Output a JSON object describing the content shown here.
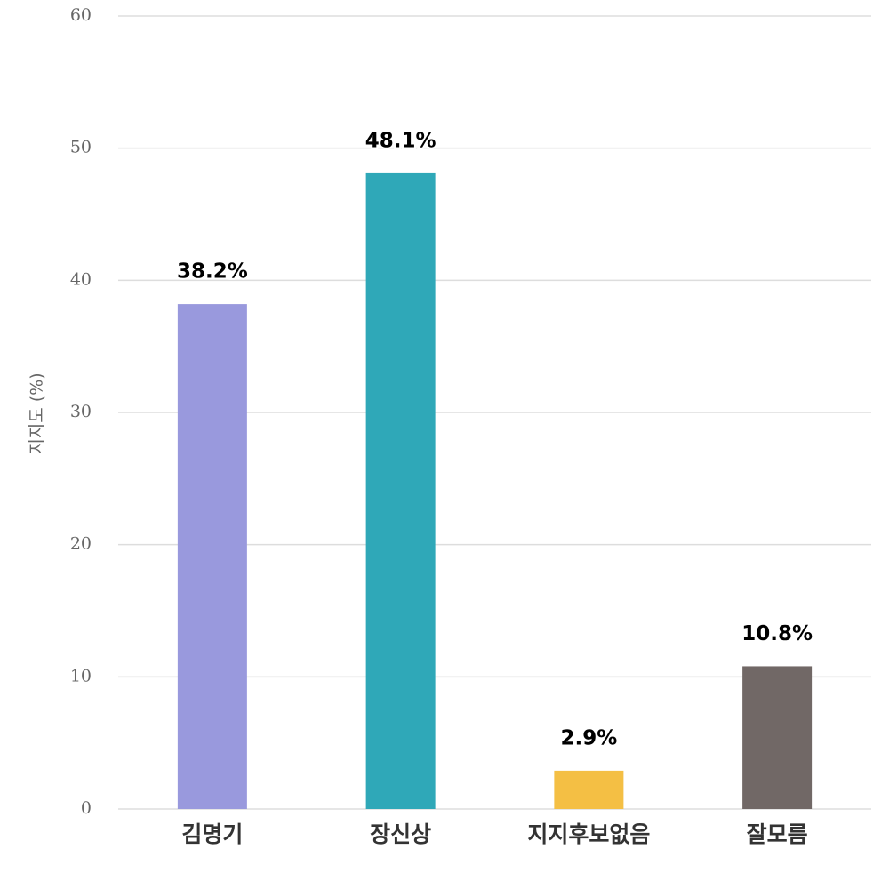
{
  "chart_data": {
    "type": "bar",
    "y_label": "지지도 (%)",
    "categories": [
      "김명기",
      "장신상",
      "지지후보없음",
      "잘모름"
    ],
    "values": [
      38.2,
      48.1,
      2.9,
      10.8
    ],
    "value_labels": [
      "38.2%",
      "48.1%",
      "2.9%",
      "10.8%"
    ],
    "colors": [
      "#9999dd",
      "#2fa8b8",
      "#f4bf44",
      "#716866"
    ],
    "ylim": [
      0,
      60
    ],
    "yticks": [
      0,
      10,
      20,
      30,
      40,
      50,
      60
    ],
    "grid": true
  }
}
